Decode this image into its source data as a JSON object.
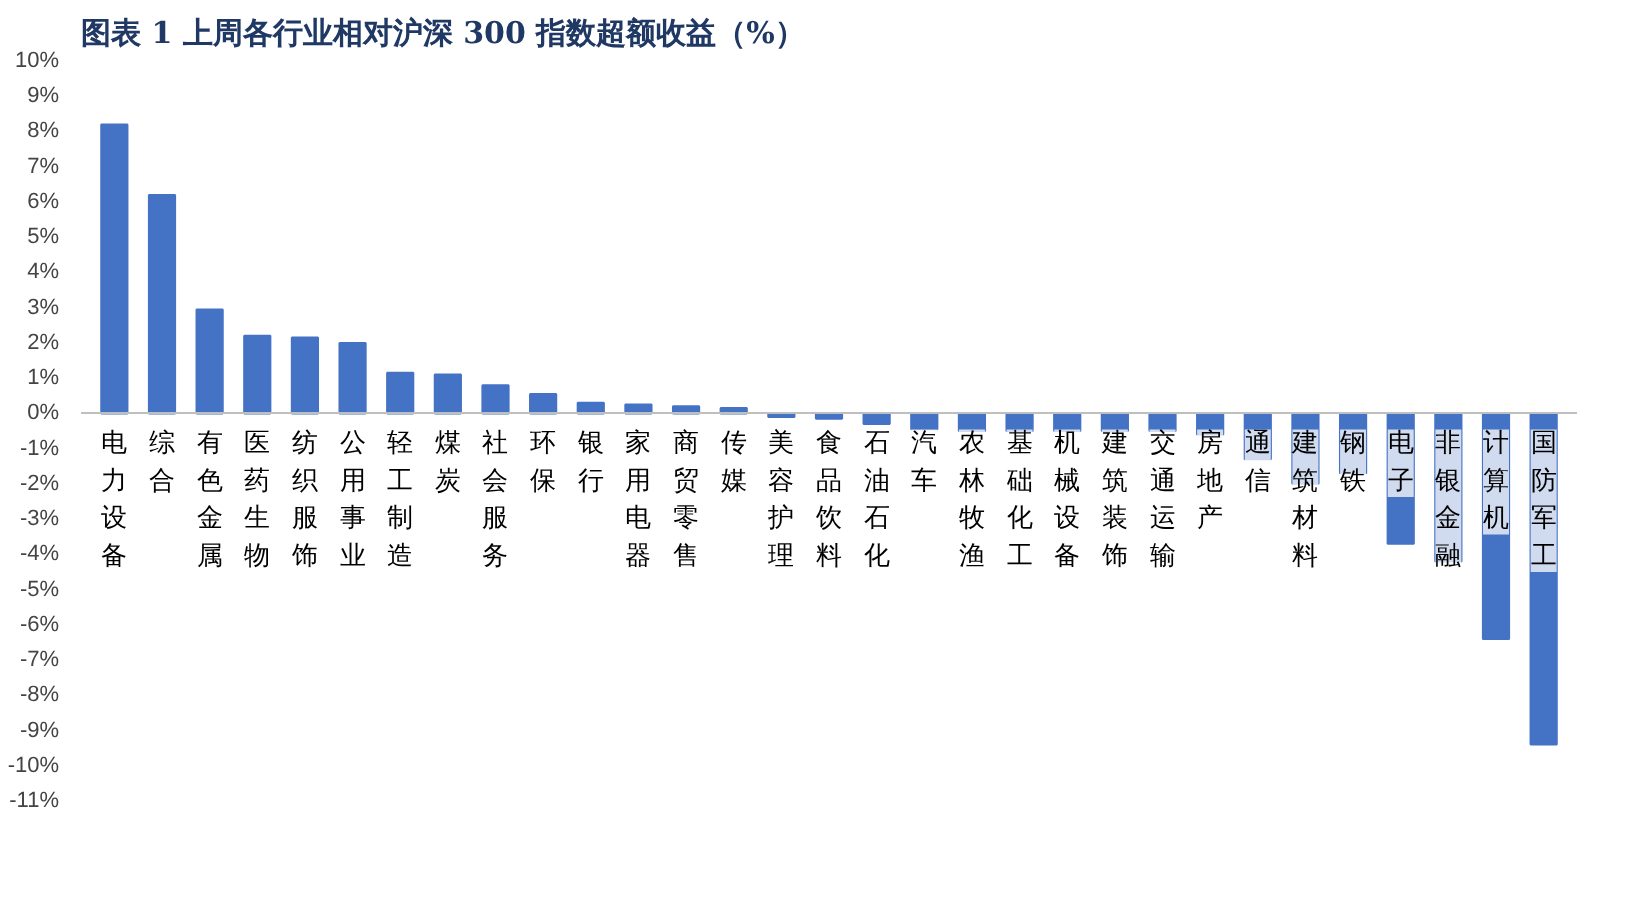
{
  "chart_data": {
    "type": "bar",
    "title": "图表 1   上周各行业相对沪深 300 指数超额收益（%）",
    "categories": [
      "电力设备",
      "综合",
      "有色金属",
      "医药生物",
      "纺织服饰",
      "公用事业",
      "轻工制造",
      "煤炭",
      "社会服务",
      "环保",
      "银行",
      "家用电器",
      "商贸零售",
      "传媒",
      "美容护理",
      "食品饮料",
      "石油石化",
      "汽车",
      "农林牧渔",
      "基础化工",
      "机械设备",
      "建筑装饰",
      "交通运输",
      "房地产",
      "通信",
      "建筑材料",
      "钢铁",
      "电子",
      "非银金融",
      "计算机",
      "国防军工"
    ],
    "values": [
      8.2,
      6.2,
      2.95,
      2.2,
      2.15,
      2.0,
      1.15,
      1.1,
      0.8,
      0.55,
      0.3,
      0.25,
      0.2,
      0.15,
      -0.1,
      -0.15,
      -0.3,
      -0.45,
      -0.5,
      -0.5,
      -0.5,
      -0.5,
      -0.5,
      -0.6,
      -1.3,
      -2.0,
      -1.7,
      -3.7,
      -4.2,
      -6.4,
      -9.4
    ],
    "color": "#4472c4",
    "ylim": [
      -11,
      10
    ],
    "yticks": [
      {
        "value": -11,
        "label": "-11%"
      },
      {
        "value": -10,
        "label": "-10%"
      },
      {
        "value": -9,
        "label": "-9%"
      },
      {
        "value": -8,
        "label": "-8%"
      },
      {
        "value": -7,
        "label": "-7%"
      },
      {
        "value": -6,
        "label": "-6%"
      },
      {
        "value": -5,
        "label": "-5%"
      },
      {
        "value": -4,
        "label": "-4%"
      },
      {
        "value": -3,
        "label": "-3%"
      },
      {
        "value": -2,
        "label": "-2%"
      },
      {
        "value": -1,
        "label": "-1%"
      },
      {
        "value": 0,
        "label": "0%"
      },
      {
        "value": 1,
        "label": "1%"
      },
      {
        "value": 2,
        "label": "2%"
      },
      {
        "value": 3,
        "label": "3%"
      },
      {
        "value": 4,
        "label": "4%"
      },
      {
        "value": 5,
        "label": "5%"
      },
      {
        "value": 6,
        "label": "6%"
      },
      {
        "value": 7,
        "label": "7%"
      },
      {
        "value": 8,
        "label": "8%"
      },
      {
        "value": 9,
        "label": "9%"
      },
      {
        "value": 10,
        "label": "10%"
      }
    ],
    "grid": false
  }
}
